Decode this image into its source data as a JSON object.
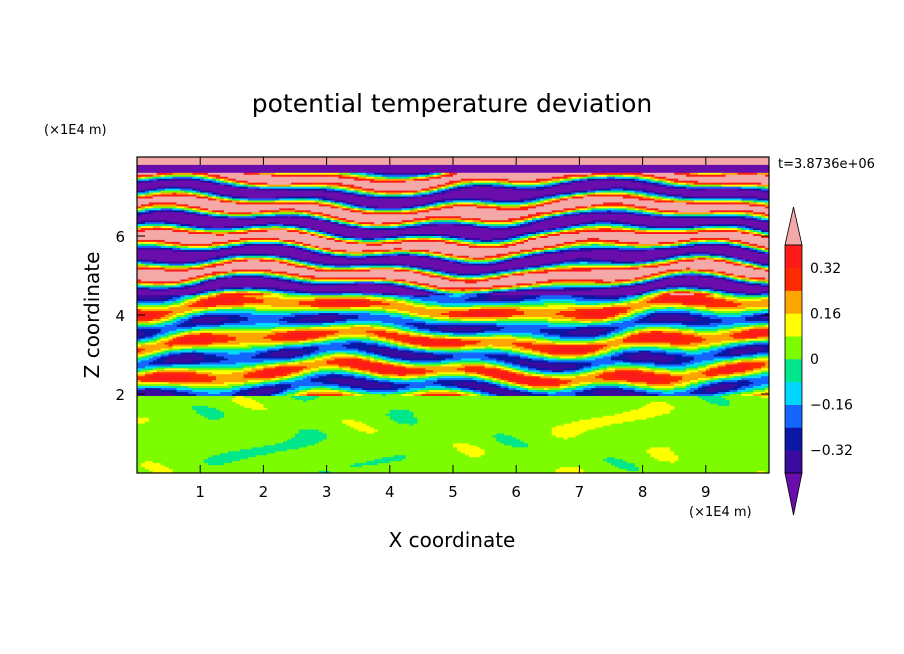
{
  "chart_data": {
    "type": "heatmap",
    "title": "potential temperature deviation",
    "xlabel": "X coordinate",
    "ylabel": "Z coordinate",
    "x_unit": "(×1E4 m)",
    "y_unit": "(×1E4 m)",
    "time_label": "t=3.8736e+06",
    "xlim": [
      0,
      10
    ],
    "ylim": [
      0,
      8
    ],
    "x_ticks": [
      "1",
      "2",
      "3",
      "4",
      "5",
      "6",
      "7",
      "8",
      "9"
    ],
    "y_ticks": [
      "2",
      "4",
      "6"
    ],
    "colorbar": {
      "levels": [
        -0.4,
        -0.32,
        -0.24,
        -0.16,
        -0.08,
        0,
        0.08,
        0.16,
        0.24,
        0.32,
        0.4
      ],
      "labels": [
        "0.32",
        "0.16",
        "0",
        "−0.16",
        "−0.32"
      ],
      "label_values": [
        0.32,
        0.16,
        0,
        -0.16,
        -0.32
      ],
      "colors": [
        "#6a0dad",
        "#3b0a9e",
        "#0b18a6",
        "#1466ff",
        "#00d7ff",
        "#00e68a",
        "#7dfc00",
        "#ffff00",
        "#ffa500",
        "#ff2a00",
        "#ff1a1a",
        "#f4a8a8"
      ],
      "extend": "both"
    },
    "description_regions": [
      {
        "z_range": [
          0,
          1.95
        ],
        "value_range": [
          0,
          0.08
        ],
        "pattern": "turbulent mixed layer"
      },
      {
        "z_range": [
          1.95,
          4.5
        ],
        "value_range": [
          -0.4,
          0.4
        ],
        "pattern": "wavy layered bands"
      },
      {
        "z_range": [
          4.5,
          7.9
        ],
        "value_range": [
          -0.4,
          0.4
        ],
        "pattern": "alternating strong bands"
      }
    ]
  }
}
